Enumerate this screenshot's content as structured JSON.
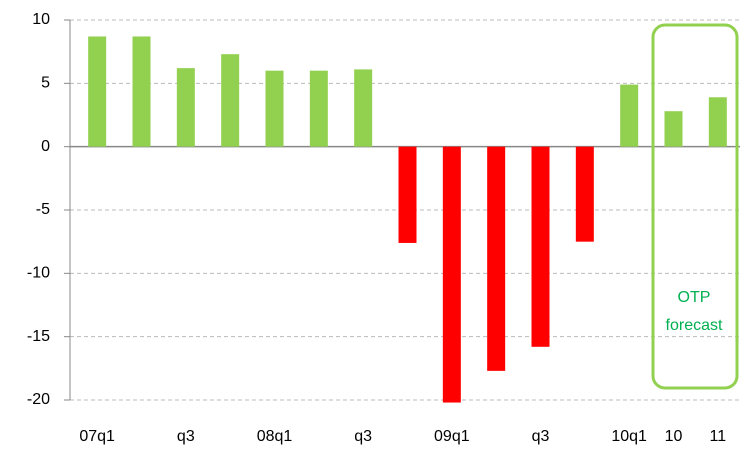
{
  "chart_data": {
    "type": "bar",
    "categories": [
      "07q1",
      null,
      "q3",
      null,
      "08q1",
      null,
      "q3",
      null,
      "09q1",
      null,
      "q3",
      null,
      "10q1",
      "10",
      "11"
    ],
    "values": [
      8.7,
      8.7,
      6.2,
      7.3,
      6.0,
      6.0,
      6.1,
      -7.6,
      -20.2,
      -17.7,
      -15.8,
      -7.5,
      4.9,
      2.8,
      3.9
    ],
    "colors": [
      "#92d050",
      "#92d050",
      "#92d050",
      "#92d050",
      "#92d050",
      "#92d050",
      "#92d050",
      "#ff0000",
      "#ff0000",
      "#ff0000",
      "#ff0000",
      "#ff0000",
      "#92d050",
      "#92d050",
      "#92d050"
    ],
    "ylim": [
      -20,
      10
    ],
    "yticks": [
      -20,
      -15,
      -10,
      -5,
      0,
      5,
      10
    ],
    "grid": true,
    "annotation": [
      "OTP",
      "forecast"
    ],
    "annotation_color": "#00b050"
  }
}
